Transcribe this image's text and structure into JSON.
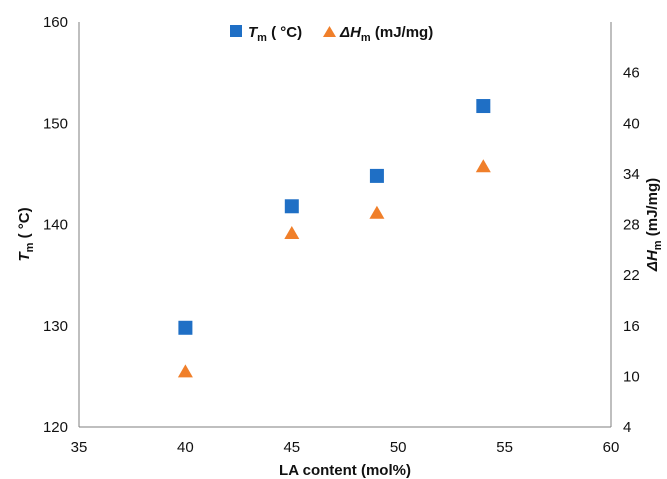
{
  "chart_data": {
    "type": "scatter",
    "xlabel": "LA content (mol%)",
    "xlim": [
      35,
      60
    ],
    "x_ticks": [
      "35",
      "40",
      "45",
      "50",
      "55",
      "60"
    ],
    "y_left": {
      "label_main": "T",
      "label_sub": "m",
      "label_unit": " ( °C)",
      "ylim": [
        120,
        160
      ],
      "ticks": [
        "120",
        "130",
        "140",
        "150",
        "160"
      ]
    },
    "y_right": {
      "label_main": "ΔH",
      "label_sub": "m",
      "label_unit": " (mJ/mg)",
      "ylim": [
        4,
        52
      ],
      "ticks": [
        "4",
        "10",
        "16",
        "22",
        "28",
        "34",
        "40",
        "46"
      ]
    },
    "legend_position": "top-center",
    "series": [
      {
        "name_main": "T",
        "name_sub": "m",
        "name_unit": " ( °C)",
        "axis": "left",
        "marker": "square",
        "color": "#1f6fc5",
        "x": [
          40,
          45,
          49,
          54
        ],
        "y": [
          129.8,
          141.8,
          144.8,
          151.7
        ]
      },
      {
        "name_main": "ΔH",
        "name_sub": "m",
        "name_unit": " (mJ/mg)",
        "axis": "right",
        "marker": "triangle",
        "color": "#f07f2a",
        "x": [
          40,
          45,
          49,
          54
        ],
        "y": [
          10.6,
          27.0,
          29.4,
          34.9
        ]
      }
    ]
  }
}
